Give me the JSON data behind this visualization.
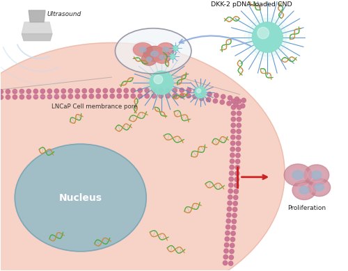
{
  "bg_color": "#ffffff",
  "ultrasound_label": "Ultrasound",
  "cnd_label": "DKK-2 pDNA-loaded CND",
  "membrane_label": "LNCaP Cell membrance pore",
  "nucleus_label": "Nucleus",
  "proliferation_label": "Proliferation",
  "cell_fill_color": "#f5c0ae",
  "nucleus_fill_color": "#85b8c8",
  "nucleus_border_color": "#6898a8",
  "membrane_pink": "#cc8899",
  "membrane_head_color": "#c87090",
  "cnd_color": "#88ddcc",
  "ray_color": "#4488cc",
  "ultrasound_wave_color": "#c8ddf0",
  "arrow_color": "#88aadd",
  "inhibit_color": "#cc2222",
  "probe_color": "#bbbbbb"
}
